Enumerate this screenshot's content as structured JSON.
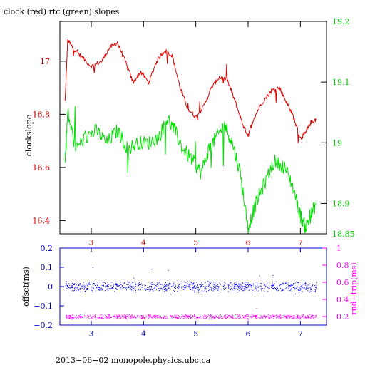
{
  "chart_data": [
    {
      "type": "line",
      "title": "clock (red) rtc (green) slopes",
      "ylabel": "clockslope",
      "x_ticks": [
        "3",
        "4",
        "5",
        "6",
        "7"
      ],
      "xlim": [
        2.4,
        7.5
      ],
      "ylim_left": [
        16.35,
        17.15
      ],
      "ylim_right": [
        18.85,
        19.2
      ],
      "y_ticks_left": [
        "16.4",
        "16.6",
        "16.8",
        "17"
      ],
      "y_ticks_right": [
        "18.85",
        "18.9",
        "19",
        "19.1",
        "19.2"
      ],
      "colors": {
        "axes": "#000000",
        "left_ticks": "#cc0000",
        "right_ticks": "#00cc00",
        "x_ticks": "#cc0000"
      },
      "series": [
        {
          "axis": "left",
          "color": "#dd0000",
          "x": [
            2.5,
            2.55,
            2.65,
            2.8,
            3.0,
            3.2,
            3.35,
            3.5,
            3.65,
            3.8,
            3.95,
            4.1,
            4.25,
            4.4,
            4.55,
            4.7,
            4.85,
            5.0,
            5.15,
            5.3,
            5.45,
            5.6,
            5.75,
            5.9,
            6.0,
            6.1,
            6.25,
            6.45,
            6.6,
            6.75,
            6.85,
            7.0,
            7.1,
            7.2,
            7.3
          ],
          "y": [
            16.85,
            17.08,
            17.05,
            17.02,
            16.98,
            17.0,
            17.05,
            17.07,
            17.0,
            16.92,
            16.96,
            16.92,
            17.0,
            17.04,
            17.02,
            16.9,
            16.82,
            16.79,
            16.83,
            16.9,
            16.94,
            16.93,
            16.85,
            16.76,
            16.72,
            16.78,
            16.84,
            16.89,
            16.9,
            16.84,
            16.8,
            16.71,
            16.73,
            16.77,
            16.78
          ]
        },
        {
          "axis": "right",
          "color": "#00dd00",
          "x": [
            2.5,
            2.55,
            2.7,
            2.9,
            3.1,
            3.3,
            3.5,
            3.7,
            3.9,
            4.1,
            4.3,
            4.45,
            4.6,
            4.75,
            4.95,
            5.1,
            5.25,
            5.4,
            5.55,
            5.7,
            5.85,
            6.0,
            6.15,
            6.3,
            6.5,
            6.7,
            6.85,
            7.0,
            7.1,
            7.2,
            7.3
          ],
          "y": [
            18.97,
            19.05,
            18.99,
            19.01,
            19.02,
            19.0,
            19.02,
            18.99,
            19.0,
            19.0,
            19.01,
            19.04,
            19.02,
            18.99,
            18.97,
            18.95,
            18.99,
            19.01,
            19.03,
            19.0,
            18.95,
            18.86,
            18.9,
            18.93,
            18.97,
            18.96,
            18.93,
            18.88,
            18.86,
            18.88,
            18.9
          ]
        }
      ]
    },
    {
      "type": "scatter",
      "ylabel_left": "offset(ms)",
      "ylabel_right": "rnd−trip(ms)",
      "x_ticks": [
        "3",
        "4",
        "5",
        "6",
        "7"
      ],
      "xlim": [
        2.4,
        7.5
      ],
      "ylim_left": [
        -0.2,
        0.2
      ],
      "ylim_right": [
        0.1,
        1.0
      ],
      "y_ticks_left": [
        "−0.2",
        "−0.1",
        "0",
        "0.1",
        "0.2"
      ],
      "y_ticks_right": [
        "0.2",
        "0.4",
        "0.6",
        "0.8",
        "1"
      ],
      "colors": {
        "axes": "#0000cc",
        "left_ticks": "#0000cc",
        "right_ticks": "#ff00ff",
        "x_ticks": "#0000cc"
      },
      "series": [
        {
          "axis": "left",
          "color": "#0000ff",
          "x_range": [
            2.5,
            7.3
          ],
          "center": 0.0,
          "spread": 0.02
        },
        {
          "axis": "right",
          "color": "#ff00ff",
          "x_range": [
            2.5,
            7.3
          ],
          "center": 0.2,
          "spread": 0.02
        }
      ]
    }
  ],
  "footer": "2013−06−02  monopole.physics.ubc.ca"
}
